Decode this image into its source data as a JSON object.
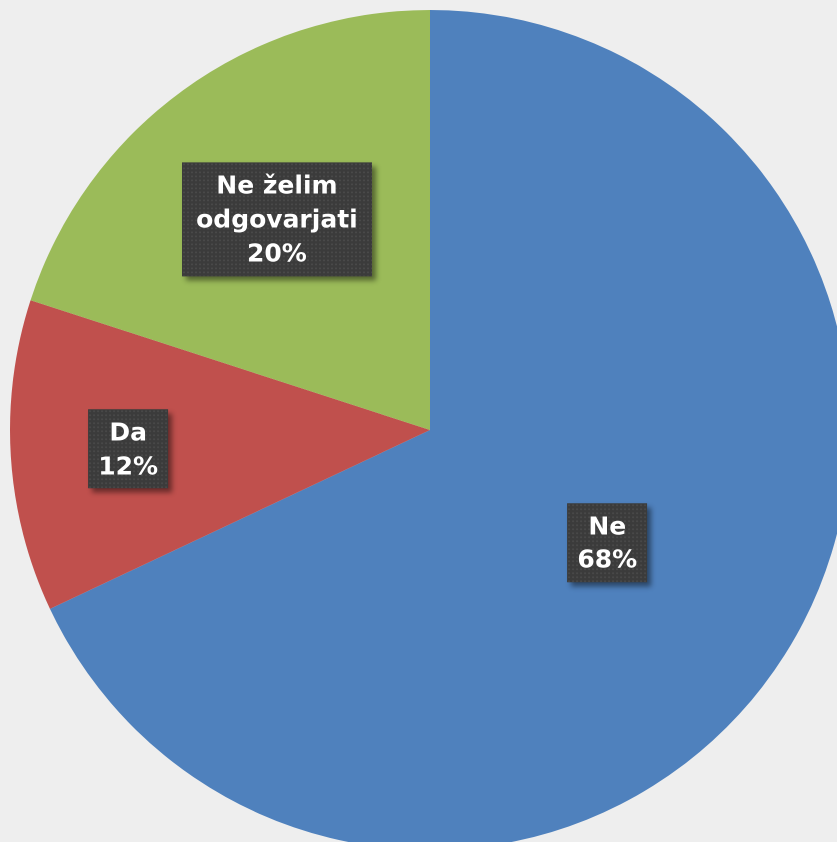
{
  "chart_data": {
    "type": "pie",
    "categories": [
      "Ne",
      "Da",
      "Ne želim odgovarjati"
    ],
    "values": [
      68,
      12,
      20
    ],
    "value_labels": [
      "68%",
      "12%",
      "20%"
    ],
    "colors": [
      "#4f81bd",
      "#c0504d",
      "#9bbb59"
    ]
  }
}
